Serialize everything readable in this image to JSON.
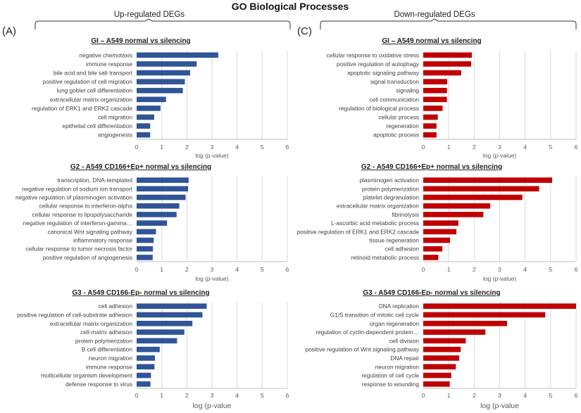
{
  "title": "GO Biological Processes",
  "columns": {
    "left": {
      "header": "Up-regulated DEGs",
      "panel_letter": "(A)"
    },
    "right": {
      "header": "Down-regulated DEGs",
      "panel_letter": "(C)"
    }
  },
  "colors": {
    "up": "#2F5597",
    "down": "#C00000",
    "grid": "#D9D9D9"
  },
  "chart_data": [
    {
      "type": "bar",
      "orientation": "horizontal",
      "column": "left",
      "row": 0,
      "title": "GI – A549 normal vs silencing",
      "xlabel": "log (p-value)",
      "xlim": [
        0,
        6
      ],
      "ticks": [
        "0",
        "1",
        "2",
        "3",
        "4",
        "5",
        "6"
      ],
      "categories": [
        "negative chemotaxis",
        "immune response",
        "bile acid and bile salt transport",
        "positive regulation of cell migration",
        "lung goblet cell differentiation",
        "extracellular matrix organization",
        "regulation of ERK1 and ERK2 cascade",
        "cell migration",
        "epithelial cell differentiation",
        "angiogenesis"
      ],
      "values": [
        3.25,
        2.39,
        2.13,
        1.92,
        1.84,
        1.17,
        0.95,
        0.7,
        0.54,
        0.54
      ]
    },
    {
      "type": "bar",
      "orientation": "horizontal",
      "column": "right",
      "row": 0,
      "title": "GI – A549 normal vs silencing",
      "xlabel": "log (p-value)",
      "xlim": [
        0,
        6
      ],
      "ticks": [
        "0",
        "1",
        "2",
        "3",
        "4",
        "5",
        "6"
      ],
      "categories": [
        "cellular response to oxidative stress",
        "positive regulation of autophagy",
        "apoptotic signaling pathway",
        "signal transduction",
        "signaling",
        "cell communication",
        "regulation of biological process",
        "cellular process",
        "regeneration",
        "apoptotic process"
      ],
      "values": [
        1.91,
        1.88,
        1.49,
        0.94,
        0.93,
        0.93,
        0.76,
        0.57,
        0.52,
        0.52
      ]
    },
    {
      "type": "bar",
      "orientation": "horizontal",
      "column": "left",
      "row": 1,
      "title": "G2 - A549 CD166+Ep+ normal vs silencing",
      "xlabel": "log (p-value)",
      "xlim": [
        0,
        6
      ],
      "ticks": [
        "0",
        "1",
        "2",
        "3",
        "4",
        "5",
        "6"
      ],
      "categories": [
        "transcription, DNA-templated",
        "negative regulation of sodium ion transport",
        "negative regulation of plasminogen activation",
        "cellular response to interferon-alpha",
        "cellular response to lipopolysaccharide",
        "negative regulation of interferon-gamma…",
        "canonical Wnt signaling pathway",
        "inflammatory response",
        "cellular response to tumor necrosis factor",
        "positive regulation of angiogenesis"
      ],
      "values": [
        2.07,
        2.05,
        1.95,
        1.7,
        1.59,
        1.21,
        0.77,
        0.68,
        0.65,
        0.64
      ]
    },
    {
      "type": "bar",
      "orientation": "horizontal",
      "column": "right",
      "row": 1,
      "title": "G2 - A549 CD166+Ep+ normal vs silencing",
      "xlabel": "log (p-value)",
      "xlim": [
        0,
        6
      ],
      "ticks": [
        "0",
        "1",
        "2",
        "3",
        "4",
        "5",
        "6"
      ],
      "categories": [
        "plasminogen activation",
        "protein polymerization",
        "platelet degranulation",
        "extracellular matrix organization",
        "fibrinolysis",
        "L-ascorbic acid metabolic process",
        "positive regulation of ERK1 and ERK2 cascade",
        "tissue regeneration",
        "cell adhesion",
        "retinoid metabolic process"
      ],
      "values": [
        5.06,
        4.55,
        3.89,
        2.63,
        2.36,
        1.38,
        1.3,
        1.05,
        0.75,
        0.59
      ]
    },
    {
      "type": "bar",
      "orientation": "horizontal",
      "column": "left",
      "row": 2,
      "title": "G3 - A549 CD166-Ep- normal vs silencing",
      "xlabel": "log (p-value",
      "xlim": [
        0,
        6
      ],
      "ticks": [
        "0",
        "1",
        "2",
        "3",
        "4",
        "5",
        "6"
      ],
      "categories": [
        "cell adhesion",
        "positive regulation of cell-substrate adhesion",
        "extracellular matrix organization",
        "cell-matrix adhesion",
        "protein polymerization",
        "B cell differentiation",
        "neuron migration",
        "immune response",
        "multicellular organism development",
        "defense response to virus"
      ],
      "values": [
        2.79,
        2.62,
        2.22,
        1.9,
        1.61,
        0.92,
        0.73,
        0.71,
        0.57,
        0.55
      ]
    },
    {
      "type": "bar",
      "orientation": "horizontal",
      "column": "right",
      "row": 2,
      "title": "G3 - A549 CD166-Ep- normal vs silencing",
      "xlabel": "log (p-value",
      "xlim": [
        0,
        6
      ],
      "ticks": [
        "0",
        "1",
        "2",
        "3",
        "4",
        "5",
        "6"
      ],
      "categories": [
        "DNA replication",
        "G1/S transition of mitotic cell cycle",
        "organ regeneration",
        "regulation of cyclin-dependent protein…",
        "cell division",
        "positive regulation of Wnt signaling pathway",
        "DNA repair",
        "neuron migration",
        "regulation of cell cycle",
        "response to wounding"
      ],
      "values": [
        6.0,
        4.79,
        3.29,
        2.44,
        1.67,
        1.47,
        1.41,
        1.28,
        1.1,
        1.04
      ]
    }
  ]
}
